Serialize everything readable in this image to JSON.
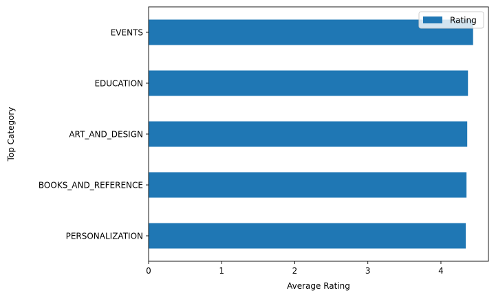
{
  "chart_data": {
    "type": "bar",
    "orientation": "horizontal",
    "categories": [
      "PERSONALIZATION",
      "BOOKS_AND_REFERENCE",
      "ART_AND_DESIGN",
      "EDUCATION",
      "EVENTS"
    ],
    "series": [
      {
        "name": "Rating",
        "color": "#1f77b4",
        "values": [
          4.34,
          4.35,
          4.36,
          4.37,
          4.44
        ]
      }
    ],
    "xlabel": "Average Rating",
    "ylabel": "Top Category",
    "xlim": [
      0,
      4.65
    ],
    "xticks": [
      0,
      1,
      2,
      3,
      4
    ],
    "xtick_labels": [
      "0",
      "1",
      "2",
      "3",
      "4"
    ],
    "grid": false,
    "legend_position": "top-right"
  }
}
